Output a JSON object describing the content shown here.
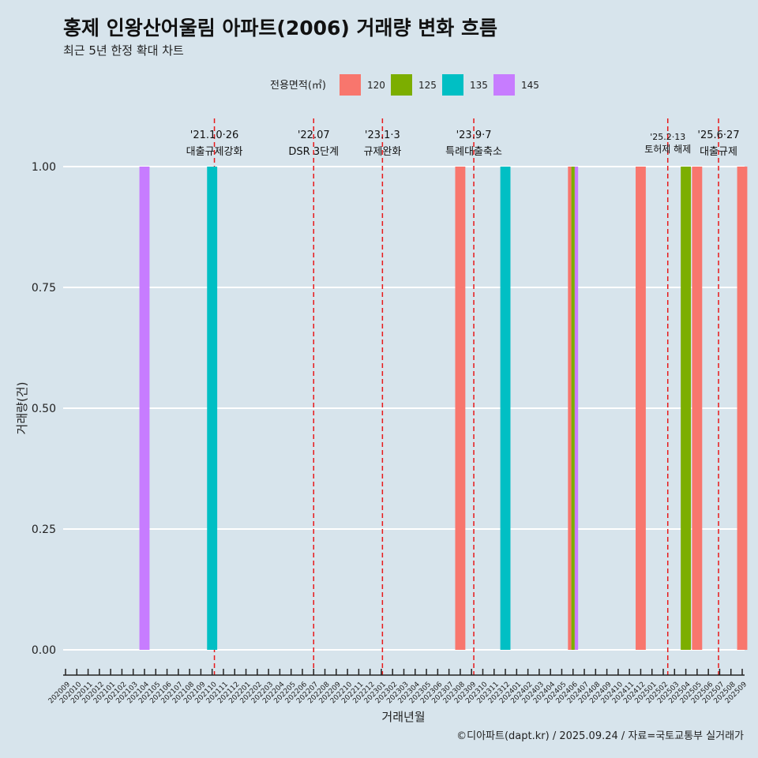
{
  "header": {
    "title": "홍제 인왕산어울림 아파트(2006) 거래량 변화 흐름",
    "subtitle": "최근 5년 한정 확대 차트"
  },
  "footer": {
    "caption": "©디아파트(dapt.kr) / 2025.09.24 / 자료=국토교통부 실거래가"
  },
  "chart_data": {
    "type": "bar",
    "title": "홍제 인왕산어울림 아파트(2006) 거래량 변화 흐름",
    "xlabel": "거래년월",
    "ylabel": "거래량(건)",
    "ylim": [
      0,
      1
    ],
    "yticks": [
      "0.00",
      "0.25",
      "0.50",
      "0.75",
      "1.00"
    ],
    "legend_title": "전용면적(㎡)",
    "legend_position": "top",
    "categories": [
      "202009",
      "202010",
      "202011",
      "202012",
      "202101",
      "202102",
      "202103",
      "202104",
      "202105",
      "202106",
      "202107",
      "202108",
      "202109",
      "202110",
      "202111",
      "202112",
      "202201",
      "202202",
      "202203",
      "202204",
      "202205",
      "202206",
      "202207",
      "202208",
      "202209",
      "202210",
      "202211",
      "202212",
      "202301",
      "202302",
      "202303",
      "202304",
      "202305",
      "202306",
      "202307",
      "202308",
      "202309",
      "202310",
      "202311",
      "202312",
      "202401",
      "202402",
      "202403",
      "202404",
      "202405",
      "202406",
      "202407",
      "202408",
      "202409",
      "202410",
      "202411",
      "202412",
      "202501",
      "202502",
      "202503",
      "202504",
      "202505",
      "202506",
      "202507",
      "202508",
      "202509"
    ],
    "series": [
      {
        "name": "120",
        "color": "#F8766D",
        "points": [
          {
            "month": "202308",
            "value": 1
          },
          {
            "month": "202406",
            "value": 1
          },
          {
            "month": "202412",
            "value": 1
          },
          {
            "month": "202505",
            "value": 1
          },
          {
            "month": "202509",
            "value": 1
          }
        ]
      },
      {
        "name": "125",
        "color": "#7CAE00",
        "points": [
          {
            "month": "202406",
            "value": 1
          },
          {
            "month": "202504",
            "value": 1
          }
        ]
      },
      {
        "name": "135",
        "color": "#00BFC4",
        "points": [
          {
            "month": "202110",
            "value": 1
          },
          {
            "month": "202312",
            "value": 1
          }
        ]
      },
      {
        "name": "145",
        "color": "#C77CFF",
        "points": [
          {
            "month": "202104",
            "value": 1
          },
          {
            "month": "202406",
            "value": 1
          }
        ]
      }
    ],
    "events": [
      {
        "month": "202110",
        "offset": 0.2,
        "date": "'21.10·26",
        "label": "대출규제강화",
        "small": false
      },
      {
        "month": "202207",
        "offset": 0.0,
        "date": "'22.07",
        "label": "DSR 3단계",
        "small": false
      },
      {
        "month": "202301",
        "offset": 0.1,
        "date": "'23.1·3",
        "label": "규제완화",
        "small": false
      },
      {
        "month": "202309",
        "offset": 0.2,
        "date": "'23.9·7",
        "label": "특례대출축소",
        "small": false
      },
      {
        "month": "202502",
        "offset": 0.4,
        "date": "'25.2·13",
        "label": "토허제 해제",
        "small": true
      },
      {
        "month": "202506",
        "offset": 0.9,
        "date": "'25.6·27",
        "label": "대출규제",
        "small": false
      }
    ],
    "event_line_color": "#e8191a"
  }
}
